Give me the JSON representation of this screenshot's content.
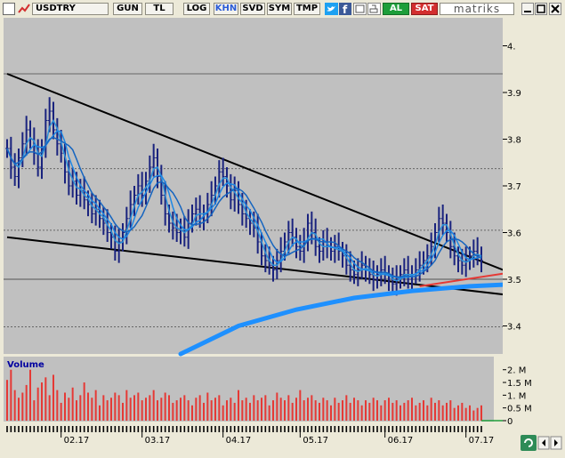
{
  "toolbar": {
    "symbol": "USDTRY",
    "buttons": [
      "GUN",
      "TL",
      "LOG",
      "KHN",
      "SVD",
      "SYM",
      "TMP"
    ],
    "active_button": "KHN",
    "buy_label": "AL",
    "sell_label": "SAT",
    "brand": "matriks"
  },
  "colors": {
    "candle": "#1a237e",
    "ma": "#1e88e5",
    "ma_long": "#1e90ff",
    "trendline": "#000000",
    "red_trend": "#e53935",
    "volume": "#e53935",
    "chart_bg": "#c0c0c0"
  },
  "chart_data": {
    "type": "line",
    "price_ticks": [
      "4.",
      "3.9",
      "3.8",
      "3.7",
      "3.6",
      "3.5",
      "3.4"
    ],
    "volume_title": "Volume",
    "volume_ticks": [
      "2. M",
      "1.5 M",
      "1. M",
      "0.5 M",
      "0"
    ],
    "x_ticks": [
      "02.17",
      "03.17",
      "04.17",
      "05.17",
      "06.17",
      "07.17"
    ],
    "ylim": [
      3.34,
      4.06
    ],
    "h_reference_lines": [
      3.94,
      3.737,
      3.605,
      3.5,
      3.398
    ],
    "upper_trendline": [
      [
        0,
        3.94
      ],
      [
        147,
        3.46
      ]
    ],
    "lower_trendline": [
      [
        0,
        3.59
      ],
      [
        147,
        3.45
      ]
    ],
    "red_trendline": [
      [
        107,
        3.485
      ],
      [
        147,
        3.535
      ]
    ],
    "closes": [
      3.78,
      3.74,
      3.72,
      3.76,
      3.79,
      3.82,
      3.8,
      3.77,
      3.74,
      3.78,
      3.84,
      3.86,
      3.82,
      3.79,
      3.77,
      3.73,
      3.7,
      3.71,
      3.68,
      3.69,
      3.67,
      3.66,
      3.64,
      3.65,
      3.63,
      3.62,
      3.6,
      3.59,
      3.56,
      3.58,
      3.6,
      3.63,
      3.66,
      3.68,
      3.7,
      3.68,
      3.71,
      3.74,
      3.76,
      3.72,
      3.68,
      3.64,
      3.62,
      3.61,
      3.6,
      3.61,
      3.59,
      3.62,
      3.64,
      3.65,
      3.63,
      3.64,
      3.66,
      3.68,
      3.7,
      3.73,
      3.72,
      3.7,
      3.67,
      3.69,
      3.66,
      3.64,
      3.63,
      3.62,
      3.61,
      3.58,
      3.55,
      3.54,
      3.53,
      3.52,
      3.54,
      3.56,
      3.58,
      3.6,
      3.59,
      3.57,
      3.56,
      3.58,
      3.62,
      3.6,
      3.57,
      3.56,
      3.58,
      3.57,
      3.56,
      3.57,
      3.56,
      3.55,
      3.53,
      3.52,
      3.51,
      3.52,
      3.53,
      3.52,
      3.51,
      3.5,
      3.51,
      3.52,
      3.51,
      3.5,
      3.49,
      3.5,
      3.51,
      3.52,
      3.5,
      3.51,
      3.52,
      3.53,
      3.54,
      3.55,
      3.57,
      3.6,
      3.63,
      3.62,
      3.6,
      3.57,
      3.55,
      3.54,
      3.53,
      3.54,
      3.55,
      3.56,
      3.55,
      3.54
    ],
    "ma_long": [
      [
        45,
        3.34
      ],
      [
        60,
        3.4
      ],
      [
        75,
        3.435
      ],
      [
        90,
        3.46
      ],
      [
        105,
        3.475
      ],
      [
        120,
        3.485
      ],
      [
        133,
        3.49
      ]
    ],
    "volumes": [
      1.6,
      2.0,
      1.2,
      0.9,
      1.1,
      1.4,
      2.0,
      0.8,
      1.3,
      1.5,
      1.7,
      1.0,
      1.8,
      1.2,
      0.7,
      1.1,
      0.9,
      1.3,
      0.8,
      1.0,
      1.5,
      1.1,
      0.9,
      1.2,
      0.6,
      1.0,
      0.8,
      0.9,
      1.1,
      1.0,
      0.7,
      1.2,
      0.9,
      1.0,
      1.1,
      0.8,
      0.9,
      1.0,
      1.2,
      0.8,
      0.9,
      1.1,
      1.0,
      0.7,
      0.8,
      0.9,
      1.0,
      0.8,
      0.6,
      0.9,
      1.0,
      0.7,
      1.1,
      0.8,
      0.9,
      1.0,
      0.6,
      0.8,
      0.9,
      0.7,
      1.2,
      0.8,
      0.9,
      0.7,
      1.0,
      0.8,
      0.9,
      1.0,
      0.6,
      0.8,
      1.1,
      0.9,
      0.8,
      1.0,
      0.7,
      0.9,
      1.2,
      0.8,
      0.9,
      1.0,
      0.8,
      0.7,
      0.9,
      0.8,
      0.6,
      0.9,
      0.7,
      0.8,
      1.0,
      0.7,
      0.9,
      0.8,
      0.6,
      0.8,
      0.7,
      0.9,
      0.8,
      0.6,
      0.8,
      0.9,
      0.7,
      0.8,
      0.6,
      0.7,
      0.8,
      0.9,
      0.6,
      0.7,
      0.8,
      0.6,
      0.9,
      0.7,
      0.8,
      0.6,
      0.7,
      0.8,
      0.5,
      0.6,
      0.7,
      0.5,
      0.6,
      0.4,
      0.5,
      0.6
    ]
  }
}
